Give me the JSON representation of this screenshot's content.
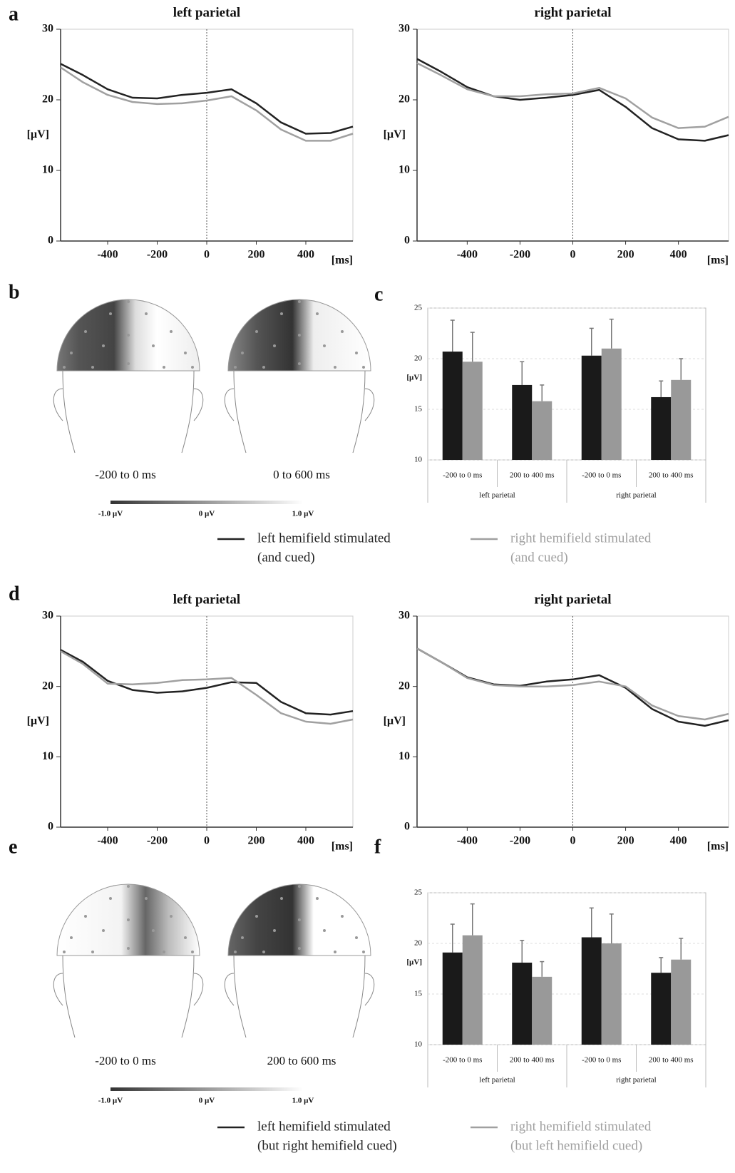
{
  "chart_data": [
    {
      "type": "line",
      "title": "left parietal",
      "xlabel": "[ms]",
      "ylabel": "[µV]",
      "x": [
        -590,
        -500,
        -400,
        -300,
        -200,
        -100,
        0,
        100,
        200,
        300,
        400,
        500,
        590
      ],
      "xlim": [
        -590,
        590
      ],
      "xticks": [
        -400,
        -200,
        0,
        200,
        400
      ],
      "ylim": [
        0,
        30
      ],
      "yticks": [
        0,
        10,
        20,
        30
      ],
      "series": [
        {
          "color": "#222222",
          "values": [
            25.1,
            23.5,
            21.5,
            20.3,
            20.2,
            20.7,
            21.0,
            21.5,
            19.5,
            16.8,
            15.2,
            15.3,
            16.2
          ]
        },
        {
          "color": "#a0a0a0",
          "values": [
            24.6,
            22.5,
            20.7,
            19.7,
            19.4,
            19.5,
            19.9,
            20.5,
            18.5,
            15.8,
            14.2,
            14.2,
            15.2
          ]
        }
      ]
    },
    {
      "type": "line",
      "title": "right parietal",
      "xlabel": "[ms]",
      "ylabel": "[µV]",
      "x": [
        -590,
        -500,
        -400,
        -300,
        -200,
        -100,
        0,
        100,
        200,
        300,
        400,
        500,
        590
      ],
      "xlim": [
        -590,
        590
      ],
      "xticks": [
        -400,
        -200,
        0,
        200,
        400
      ],
      "ylim": [
        0,
        30
      ],
      "yticks": [
        0,
        10,
        20,
        30
      ],
      "series": [
        {
          "color": "#222222",
          "values": [
            25.8,
            24.0,
            21.8,
            20.5,
            20.0,
            20.3,
            20.7,
            21.4,
            19.0,
            16.0,
            14.4,
            14.2,
            15.0
          ]
        },
        {
          "color": "#a0a0a0",
          "values": [
            25.2,
            23.5,
            21.5,
            20.5,
            20.5,
            20.8,
            20.9,
            21.7,
            20.2,
            17.5,
            16.0,
            16.2,
            17.6
          ]
        }
      ]
    },
    {
      "type": "line",
      "title": "left parietal",
      "xlabel": "[ms]",
      "ylabel": "[µV]",
      "x": [
        -590,
        -500,
        -400,
        -300,
        -200,
        -100,
        0,
        100,
        200,
        300,
        400,
        500,
        590
      ],
      "xlim": [
        -590,
        590
      ],
      "xticks": [
        -400,
        -200,
        0,
        200,
        400
      ],
      "ylim": [
        0,
        30
      ],
      "yticks": [
        0,
        10,
        20,
        30
      ],
      "series": [
        {
          "color": "#222222",
          "values": [
            25.2,
            23.5,
            20.8,
            19.5,
            19.1,
            19.3,
            19.8,
            20.6,
            20.5,
            17.8,
            16.2,
            16.0,
            16.5
          ]
        },
        {
          "color": "#a0a0a0",
          "values": [
            25.0,
            23.2,
            20.4,
            20.3,
            20.5,
            20.9,
            21.0,
            21.2,
            18.8,
            16.2,
            15.0,
            14.7,
            15.3
          ]
        }
      ]
    },
    {
      "type": "line",
      "title": "right parietal",
      "xlabel": "[ms]",
      "ylabel": "[µV]",
      "x": [
        -590,
        -500,
        -400,
        -300,
        -200,
        -100,
        0,
        100,
        200,
        300,
        400,
        500,
        590
      ],
      "xlim": [
        -590,
        590
      ],
      "xticks": [
        -400,
        -200,
        0,
        200,
        400
      ],
      "ylim": [
        0,
        30
      ],
      "yticks": [
        0,
        10,
        20,
        30
      ],
      "series": [
        {
          "color": "#222222",
          "values": [
            25.4,
            23.5,
            21.3,
            20.3,
            20.1,
            20.7,
            21.0,
            21.6,
            19.8,
            16.8,
            15.0,
            14.4,
            15.2
          ]
        },
        {
          "color": "#a0a0a0",
          "values": [
            25.4,
            23.5,
            21.2,
            20.2,
            20.0,
            20.0,
            20.2,
            20.7,
            20.0,
            17.3,
            15.8,
            15.3,
            16.1
          ]
        }
      ]
    },
    {
      "type": "bar",
      "ylabel": "[µV]",
      "categories": [
        "-200 to 0 ms",
        "200 to 400 ms",
        "-200 to 0 ms",
        "200 to 400 ms"
      ],
      "groups": [
        "left parietal",
        "right parietal"
      ],
      "ylim": [
        10,
        25
      ],
      "yticks": [
        10,
        15,
        20,
        25
      ],
      "grid": true,
      "series": [
        {
          "color": "#1a1a1a",
          "values": [
            20.7,
            17.4,
            20.3,
            16.2
          ],
          "errors": [
            3.1,
            2.3,
            2.7,
            1.6
          ]
        },
        {
          "color": "#999999",
          "values": [
            19.7,
            15.8,
            21.0,
            17.9
          ],
          "errors": [
            2.9,
            1.6,
            2.9,
            2.1
          ]
        }
      ]
    },
    {
      "type": "bar",
      "ylabel": "[µV]",
      "categories": [
        "-200 to 0 ms",
        "200 to 400 ms",
        "-200 to 0 ms",
        "200 to 400 ms"
      ],
      "groups": [
        "left parietal",
        "right parietal"
      ],
      "ylim": [
        10,
        25
      ],
      "yticks": [
        10,
        15,
        20,
        25
      ],
      "grid": true,
      "series": [
        {
          "color": "#1a1a1a",
          "values": [
            19.1,
            18.1,
            20.6,
            17.1
          ],
          "errors": [
            2.8,
            2.2,
            2.9,
            1.5
          ]
        },
        {
          "color": "#999999",
          "values": [
            20.8,
            16.7,
            20.0,
            18.4
          ],
          "errors": [
            3.1,
            1.5,
            2.9,
            2.1
          ]
        }
      ]
    }
  ],
  "panel_labels": [
    "a",
    "b",
    "c",
    "d",
    "e",
    "f"
  ],
  "topomaps": [
    {
      "labels": [
        "-200 to 0 ms",
        "0 to 600 ms"
      ],
      "colorbar": [
        "-1.0 µV",
        "0 µV",
        "1.0 µV"
      ]
    },
    {
      "labels": [
        "-200 to 0 ms",
        "200 to 600 ms"
      ],
      "colorbar": [
        "-1.0 µV",
        "0 µV",
        "1.0 µV"
      ]
    }
  ],
  "legends": [
    {
      "items": [
        {
          "color": "#222222",
          "lines": [
            "left hemifield stimulated",
            "(and  cued)"
          ]
        },
        {
          "color": "#a0a0a0",
          "lines": [
            "right hemifield stimulated",
            "(and  cued)"
          ]
        }
      ]
    },
    {
      "items": [
        {
          "color": "#222222",
          "lines": [
            "left hemifield stimulated",
            "(but right hemifield cued)"
          ]
        },
        {
          "color": "#a0a0a0",
          "lines": [
            "right hemifield stimulated",
            "(but left hemifield cued)"
          ]
        }
      ]
    }
  ]
}
